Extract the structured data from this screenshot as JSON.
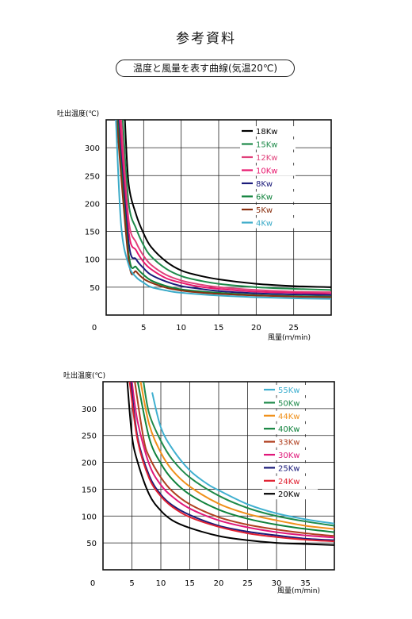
{
  "page": {
    "title": "参考資料",
    "subtitle": "温度と風量を表す曲線(気温20℃)"
  },
  "chart_data": [
    {
      "type": "line",
      "ylabel": "吐出温度(℃)",
      "xlabel": "風量(ｍ/min)",
      "xlim": [
        0,
        30
      ],
      "ylim": [
        0,
        350
      ],
      "xticks": [
        0,
        5,
        10,
        15,
        20,
        25
      ],
      "yticks": [
        50,
        100,
        150,
        200,
        250,
        300
      ],
      "grid": true,
      "legend": "top-right",
      "series": [
        {
          "name": "18Kw",
          "color": "#000000",
          "x": [
            2.5,
            3,
            4,
            5,
            6,
            8,
            10,
            12,
            15,
            20,
            25,
            30
          ],
          "values": [
            350,
            235,
            180,
            146,
            122,
            96,
            80,
            72,
            64,
            56,
            52,
            50
          ]
        },
        {
          "name": "15Kw",
          "color": "#1e8a4a",
          "x": [
            2.2,
            3,
            4,
            5,
            6,
            8,
            10,
            12,
            15,
            20,
            25,
            30
          ],
          "values": [
            350,
            200,
            155,
            125,
            105,
            83,
            70,
            63,
            56,
            50,
            47,
            45
          ]
        },
        {
          "name": "12Kw",
          "color": "#e0407a",
          "x": [
            2.0,
            3,
            4,
            5,
            6,
            8,
            10,
            12,
            15,
            20,
            25,
            30
          ],
          "values": [
            350,
            170,
            130,
            106,
            90,
            72,
            62,
            56,
            50,
            45,
            42,
            41
          ]
        },
        {
          "name": "10Kw",
          "color": "#e8186e",
          "x": [
            1.8,
            3,
            4,
            5,
            6,
            8,
            10,
            12,
            15,
            20,
            25,
            30
          ],
          "values": [
            350,
            150,
            116,
            95,
            82,
            66,
            58,
            52,
            47,
            42,
            40,
            38
          ]
        },
        {
          "name": "8Kw",
          "color": "#1a1a7a",
          "x": [
            1.6,
            3,
            4,
            5,
            6,
            8,
            10,
            12,
            15,
            20,
            25,
            30
          ],
          "values": [
            350,
            130,
            100,
            84,
            72,
            60,
            52,
            48,
            43,
            39,
            37,
            36
          ]
        },
        {
          "name": "6Kw",
          "color": "#10823c",
          "x": [
            1.5,
            3,
            4,
            5,
            6,
            8,
            10,
            12,
            15,
            20,
            25,
            30
          ],
          "values": [
            350,
            110,
            86,
            72,
            62,
            52,
            46,
            43,
            40,
            36,
            34,
            33
          ]
        },
        {
          "name": "5Kw",
          "color": "#8a3010",
          "x": [
            1.4,
            3,
            4,
            5,
            6,
            8,
            10,
            12,
            15,
            20,
            25,
            30
          ],
          "values": [
            350,
            98,
            78,
            65,
            58,
            49,
            44,
            41,
            38,
            35,
            33,
            32
          ]
        },
        {
          "name": "4Kw",
          "color": "#3aaac8",
          "x": [
            1.3,
            2,
            3,
            4,
            5,
            6,
            8,
            10,
            15,
            20,
            25,
            30
          ],
          "values": [
            350,
            160,
            90,
            68,
            58,
            50,
            44,
            40,
            35,
            32,
            30,
            29
          ]
        }
      ]
    },
    {
      "type": "line",
      "ylabel": "吐出温度(℃)",
      "xlabel": "風量(ｍ/min)",
      "xlim": [
        0,
        40
      ],
      "ylim": [
        0,
        350
      ],
      "xticks": [
        0,
        5,
        10,
        15,
        20,
        25,
        30,
        35
      ],
      "yticks": [
        50,
        100,
        150,
        200,
        250,
        300
      ],
      "grid": true,
      "legend": "top-right",
      "series": [
        {
          "name": "55Kw",
          "color": "#40b0d0",
          "x": [
            8.5,
            10,
            12,
            15,
            18,
            20,
            25,
            30,
            35,
            40
          ],
          "values": [
            330,
            265,
            225,
            185,
            160,
            148,
            122,
            105,
            94,
            86
          ]
        },
        {
          "name": "50Kw",
          "color": "#1e8a4a",
          "x": [
            7,
            8,
            10,
            12,
            15,
            20,
            25,
            30,
            35,
            40
          ],
          "values": [
            350,
            290,
            240,
            205,
            172,
            138,
            115,
            100,
            90,
            82
          ]
        },
        {
          "name": "44Kw",
          "color": "#f0901a",
          "x": [
            6.5,
            8,
            10,
            12,
            15,
            20,
            25,
            30,
            35,
            40
          ],
          "values": [
            350,
            270,
            218,
            185,
            155,
            123,
            104,
            92,
            82,
            76
          ]
        },
        {
          "name": "40Kw",
          "color": "#10823c",
          "x": [
            6,
            8,
            10,
            12,
            15,
            20,
            25,
            30,
            35,
            40
          ],
          "values": [
            350,
            245,
            198,
            168,
            140,
            112,
            95,
            84,
            76,
            70
          ]
        },
        {
          "name": "33Kw",
          "color": "#b04020",
          "x": [
            5.5,
            7,
            8,
            10,
            12,
            15,
            20,
            25,
            30,
            35,
            40
          ],
          "values": [
            350,
            245,
            210,
            172,
            146,
            122,
            98,
            84,
            75,
            68,
            63
          ]
        },
        {
          "name": "30Kw",
          "color": "#e0187a",
          "x": [
            5,
            6,
            8,
            10,
            12,
            15,
            20,
            25,
            30,
            35,
            40
          ],
          "values": [
            350,
            275,
            196,
            158,
            136,
            114,
            92,
            79,
            70,
            64,
            60
          ]
        },
        {
          "name": "25Kw",
          "color": "#1a1a7a",
          "x": [
            4.8,
            6,
            8,
            10,
            12,
            15,
            20,
            25,
            30,
            35,
            40
          ],
          "values": [
            350,
            245,
            175,
            140,
            120,
            102,
            82,
            71,
            64,
            58,
            55
          ]
        },
        {
          "name": "24Kw",
          "color": "#e02030",
          "x": [
            4.6,
            6,
            8,
            10,
            12,
            15,
            20,
            25,
            30,
            35,
            40
          ],
          "values": [
            350,
            240,
            170,
            137,
            117,
            98,
            80,
            68,
            61,
            56,
            53
          ]
        },
        {
          "name": "20Kw",
          "color": "#000000",
          "x": [
            4.2,
            5,
            6,
            8,
            10,
            12,
            15,
            20,
            25,
            30,
            35,
            40
          ],
          "values": [
            350,
            250,
            200,
            140,
            110,
            92,
            78,
            63,
            55,
            50,
            48,
            46
          ]
        }
      ]
    }
  ]
}
